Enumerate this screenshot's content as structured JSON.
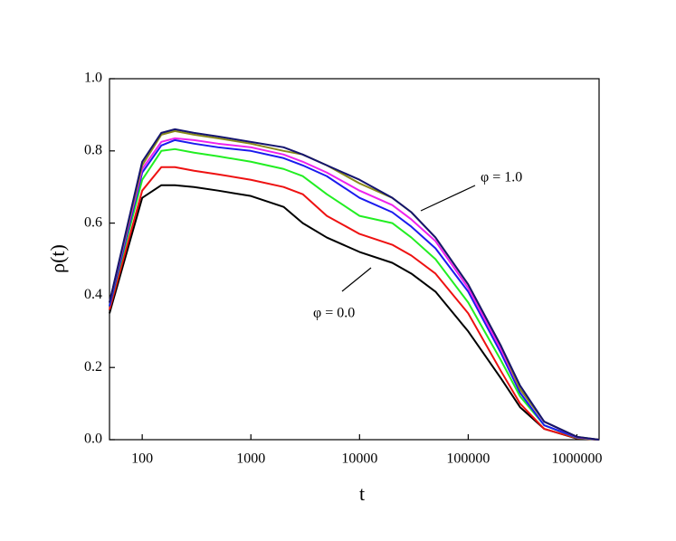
{
  "chart_data": {
    "type": "line",
    "xlabel": "t",
    "ylabel": "ρ(t)",
    "xscale": "log",
    "xlim": [
      50,
      1600000
    ],
    "ylim": [
      0,
      1
    ],
    "xticks": [
      100,
      1000,
      10000,
      100000,
      1000000
    ],
    "yticks": [
      {
        "value": 0,
        "label": "0.0"
      },
      0.2,
      0.4,
      0.6,
      0.8,
      {
        "value": 1,
        "label": "1.0"
      }
    ],
    "annotations": [
      "φ = 1.0",
      "φ = 0.0"
    ],
    "x": [
      50,
      100,
      150,
      200,
      300,
      500,
      1000,
      2000,
      3000,
      5000,
      10000,
      20000,
      30000,
      50000,
      100000,
      200000,
      300000,
      500000,
      1000000,
      1600000
    ],
    "series": [
      {
        "color": "#000000",
        "values": [
          0.35,
          0.67,
          0.705,
          0.705,
          0.7,
          0.69,
          0.675,
          0.645,
          0.6,
          0.56,
          0.52,
          0.49,
          0.46,
          0.41,
          0.3,
          0.17,
          0.09,
          0.03,
          0.003,
          0
        ]
      },
      {
        "color": "#ee1111",
        "values": [
          0.36,
          0.69,
          0.755,
          0.755,
          0.745,
          0.735,
          0.72,
          0.7,
          0.68,
          0.62,
          0.57,
          0.54,
          0.51,
          0.46,
          0.35,
          0.19,
          0.1,
          0.03,
          0.004,
          0
        ]
      },
      {
        "color": "#22ee22",
        "values": [
          0.37,
          0.72,
          0.8,
          0.805,
          0.795,
          0.785,
          0.77,
          0.75,
          0.73,
          0.68,
          0.62,
          0.6,
          0.56,
          0.5,
          0.38,
          0.22,
          0.12,
          0.04,
          0.005,
          0
        ]
      },
      {
        "color": "#1a1aee",
        "values": [
          0.37,
          0.74,
          0.815,
          0.83,
          0.82,
          0.81,
          0.8,
          0.78,
          0.76,
          0.73,
          0.67,
          0.63,
          0.59,
          0.53,
          0.41,
          0.24,
          0.13,
          0.04,
          0.006,
          0
        ]
      },
      {
        "color": "#ee22ee",
        "values": [
          0.38,
          0.75,
          0.825,
          0.835,
          0.83,
          0.82,
          0.81,
          0.79,
          0.77,
          0.74,
          0.69,
          0.65,
          0.61,
          0.55,
          0.42,
          0.25,
          0.14,
          0.05,
          0.007,
          0
        ]
      },
      {
        "color": "#8a8a1a",
        "values": [
          0.38,
          0.76,
          0.845,
          0.855,
          0.845,
          0.835,
          0.82,
          0.8,
          0.79,
          0.76,
          0.71,
          0.67,
          0.63,
          0.56,
          0.43,
          0.26,
          0.14,
          0.05,
          0.008,
          0
        ]
      },
      {
        "color": "#14146e",
        "values": [
          0.38,
          0.77,
          0.85,
          0.86,
          0.85,
          0.84,
          0.825,
          0.81,
          0.79,
          0.76,
          0.72,
          0.67,
          0.63,
          0.56,
          0.43,
          0.26,
          0.15,
          0.05,
          0.008,
          0
        ]
      }
    ]
  }
}
